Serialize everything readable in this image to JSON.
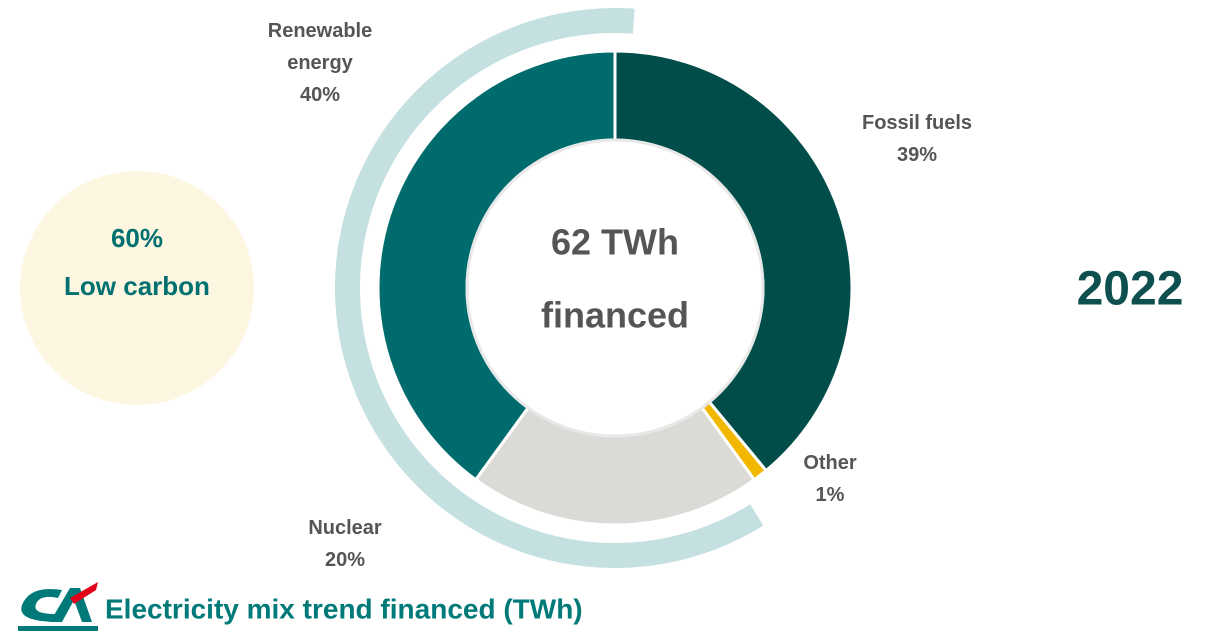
{
  "chart_data": {
    "type": "donut",
    "title": "Electricity mix trend financed (TWh)",
    "year": "2022",
    "center_text": [
      "62 TWh",
      "financed"
    ],
    "series": [
      {
        "name": "Fossil fuels",
        "color": "#004d4a",
        "value": 39,
        "value_label": "39%"
      },
      {
        "name": "Other",
        "color": "#f2b800",
        "value": 1,
        "value_label": "1%"
      },
      {
        "name": "Nuclear",
        "color": "#dcdad6",
        "value": 20,
        "value_label": "20%"
      },
      {
        "name": "Renewable energy",
        "color": "#006b6c",
        "value": 40,
        "value_label": "40%"
      }
    ],
    "annotation": {
      "value": 60,
      "value_label": "60%",
      "label": "Low carbon",
      "color": "#c5e0e0"
    }
  }
}
